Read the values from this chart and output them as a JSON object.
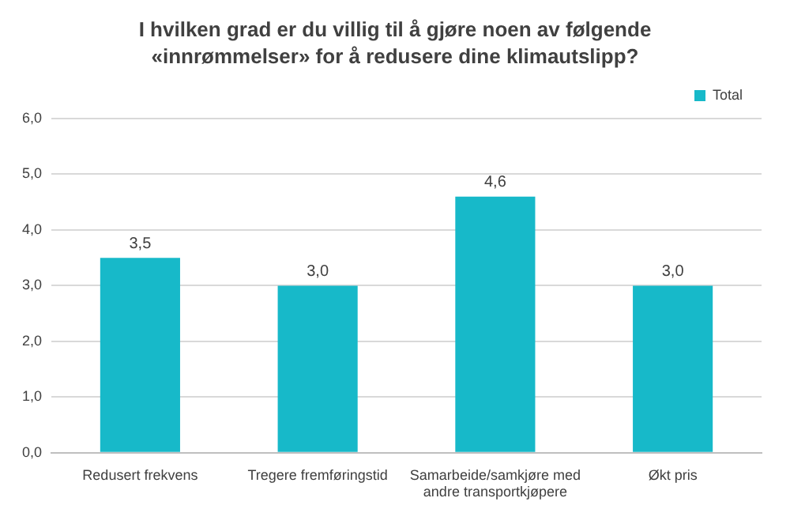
{
  "chart_data": {
    "type": "bar",
    "title": "I hvilken grad er du villig til å gjøre noen av følgende «innrømmelser» for å redusere dine klimautslipp?",
    "categories": [
      "Redusert frekvens",
      "Tregere fremføringstid",
      "Samarbeide/samkjøre med andre transportkjøpere",
      "Økt pris"
    ],
    "series": [
      {
        "name": "Total",
        "color": "#17b9c9",
        "values": [
          3.5,
          3.0,
          4.6,
          3.0
        ],
        "value_labels": [
          "3,5",
          "3,0",
          "4,6",
          "3,0"
        ]
      }
    ],
    "ylim": [
      0,
      6
    ],
    "yticks": [
      {
        "value": 0,
        "label": "0,0"
      },
      {
        "value": 1,
        "label": "1,0"
      },
      {
        "value": 2,
        "label": "2,0"
      },
      {
        "value": 3,
        "label": "3,0"
      },
      {
        "value": 4,
        "label": "4,0"
      },
      {
        "value": 5,
        "label": "5,0"
      },
      {
        "value": 6,
        "label": "6,0"
      }
    ],
    "grid": "y",
    "legend": "top right"
  }
}
